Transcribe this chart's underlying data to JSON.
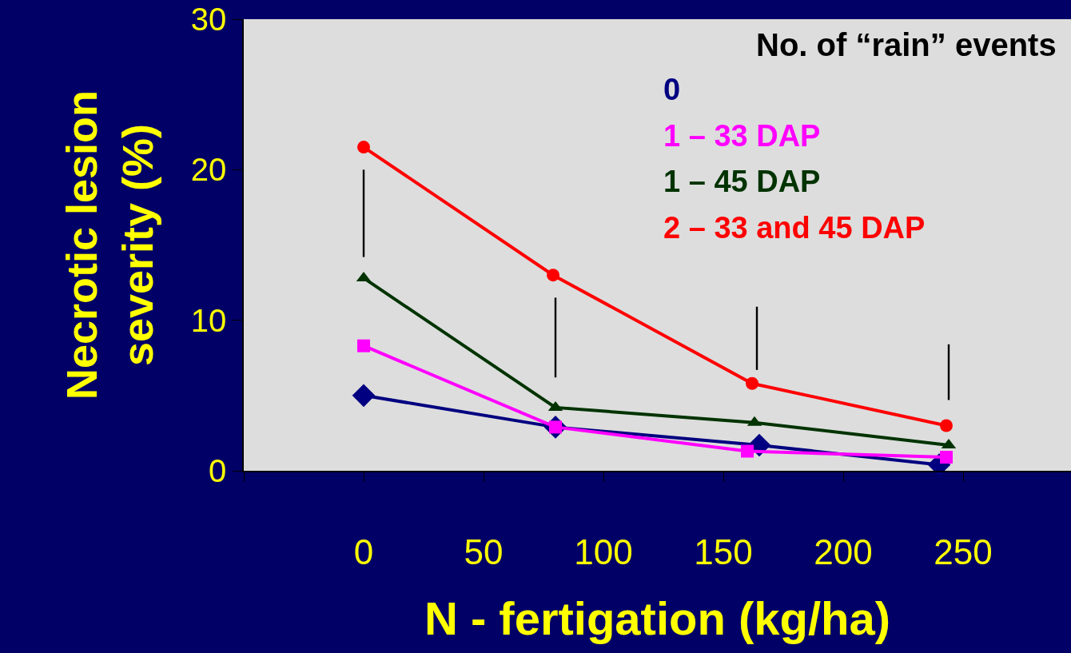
{
  "chart_data": {
    "type": "line",
    "xlabel": "N - fertigation (kg/ha)",
    "ylabel": "Necrotic lesion\nseverity (%)",
    "legend_title": "No. of “rain” events",
    "xlim": [
      -50,
      295
    ],
    "xticks": [
      {
        "value": -50,
        "label": null
      },
      0,
      50,
      100,
      150,
      200,
      250
    ],
    "ylim": [
      0,
      30
    ],
    "yticks": [
      0,
      10,
      20,
      30
    ],
    "grid": false,
    "legend": "top right",
    "series": [
      {
        "name": "0",
        "color": "#000080",
        "marker": "diamond",
        "x": [
          0,
          80,
          165,
          240
        ],
        "values": [
          5.0,
          2.9,
          1.7,
          0.4
        ]
      },
      {
        "name": "1 – 33 DAP",
        "color": "#ff00ff",
        "marker": "square",
        "x": [
          0,
          80,
          160,
          243
        ],
        "values": [
          8.3,
          2.9,
          1.3,
          0.9
        ]
      },
      {
        "name": "1 – 45 DAP",
        "color": "#003300",
        "marker": "triangle",
        "x": [
          0,
          80,
          163,
          244
        ],
        "values": [
          12.8,
          4.2,
          3.2,
          1.7
        ]
      },
      {
        "name": "2 – 33 and 45 DAP",
        "color": "#ff0000",
        "marker": "circle",
        "x": [
          0,
          79,
          162,
          243
        ],
        "values": [
          21.5,
          13.0,
          5.8,
          3.0
        ]
      },
      {
        "type": "bar",
        "color": "#000000",
        "x": [
          0,
          80,
          164,
          244
        ],
        "base": [
          14.2,
          6.2,
          6.7,
          4.7
        ],
        "values": [
          5.8,
          5.3,
          4.2,
          3.7
        ]
      }
    ]
  }
}
